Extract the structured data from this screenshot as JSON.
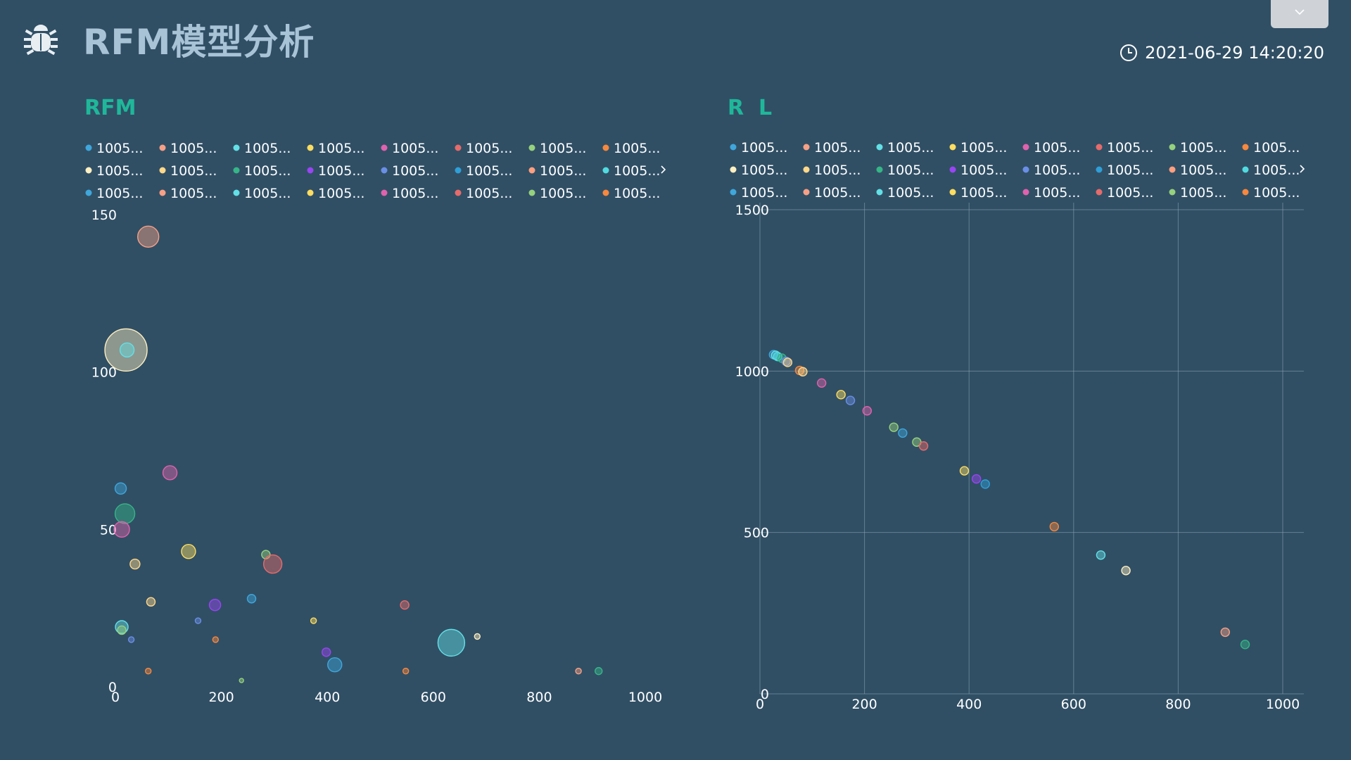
{
  "header": {
    "title": "RFM模型分析",
    "datetime": "2021-06-29 14:20:20",
    "logo_icon": "bug-icon",
    "clock_icon": "clock-icon",
    "dropdown_icon": "chevron-down-icon"
  },
  "colors": {
    "background": "#304f65",
    "panel_title": "#1fb79a",
    "header_title": "#a9c3d6",
    "palette": [
      "#3fa7dc",
      "#f7a086",
      "#63e0e6",
      "#fddd60",
      "#e062ae",
      "#e66b6b",
      "#96d17d",
      "#f7883e",
      "#fff0c2",
      "#ffd88a",
      "#36b587",
      "#9845f2",
      "#6b8fe6",
      "#2f9fd8",
      "#ff9f7f",
      "#51dbe0"
    ]
  },
  "legend_label": "1005...",
  "legend_more_icon": "chevron-right-icon",
  "chart_data": [
    {
      "type": "scatter",
      "title": "RFM",
      "xlim": [
        0,
        1000
      ],
      "ylim": [
        0,
        150
      ],
      "xticks": [
        "0",
        "200",
        "400",
        "600",
        "800",
        "1000"
      ],
      "yticks": [
        "0",
        "50",
        "100",
        "150"
      ],
      "grid": false,
      "legend_placement": "top",
      "legend_count": 24,
      "points": [
        {
          "x": 62,
          "y": 143,
          "size": 15,
          "c": 1
        },
        {
          "x": 20,
          "y": 107,
          "size": 30,
          "c": 8
        },
        {
          "x": 22,
          "y": 107,
          "size": 10,
          "c": 2
        },
        {
          "x": 103,
          "y": 68,
          "size": 10,
          "c": 4
        },
        {
          "x": 10,
          "y": 63,
          "size": 8,
          "c": 0
        },
        {
          "x": 18,
          "y": 55,
          "size": 14,
          "c": 10
        },
        {
          "x": 12,
          "y": 50,
          "size": 11,
          "c": 4
        },
        {
          "x": 138,
          "y": 43,
          "size": 10,
          "c": 3
        },
        {
          "x": 284,
          "y": 42,
          "size": 6,
          "c": 6
        },
        {
          "x": 297,
          "y": 39,
          "size": 13,
          "c": 5
        },
        {
          "x": 37,
          "y": 39,
          "size": 7,
          "c": 9
        },
        {
          "x": 67,
          "y": 27,
          "size": 6,
          "c": 9
        },
        {
          "x": 257,
          "y": 28,
          "size": 6,
          "c": 0
        },
        {
          "x": 188,
          "y": 26,
          "size": 8,
          "c": 11
        },
        {
          "x": 546,
          "y": 26,
          "size": 6,
          "c": 5
        },
        {
          "x": 156,
          "y": 21,
          "size": 4,
          "c": 12
        },
        {
          "x": 374,
          "y": 21,
          "size": 4,
          "c": 3
        },
        {
          "x": 12,
          "y": 19,
          "size": 9,
          "c": 2
        },
        {
          "x": 12,
          "y": 18,
          "size": 6,
          "c": 6
        },
        {
          "x": 634,
          "y": 14,
          "size": 19,
          "c": 2
        },
        {
          "x": 683,
          "y": 16,
          "size": 4,
          "c": 8
        },
        {
          "x": 30,
          "y": 15,
          "size": 4,
          "c": 12
        },
        {
          "x": 189,
          "y": 15,
          "size": 4,
          "c": 7
        },
        {
          "x": 398,
          "y": 11,
          "size": 6,
          "c": 11
        },
        {
          "x": 414,
          "y": 7,
          "size": 10,
          "c": 0
        },
        {
          "x": 62,
          "y": 5,
          "size": 4,
          "c": 7
        },
        {
          "x": 548,
          "y": 5,
          "size": 4,
          "c": 7
        },
        {
          "x": 874,
          "y": 5,
          "size": 4,
          "c": 1
        },
        {
          "x": 912,
          "y": 5,
          "size": 5,
          "c": 10
        },
        {
          "x": 238,
          "y": 2,
          "size": 3,
          "c": 6
        }
      ]
    },
    {
      "type": "scatter",
      "title": "R  L",
      "xlim": [
        0,
        1000
      ],
      "ylim": [
        0,
        1500
      ],
      "xticks": [
        "0",
        "200",
        "400",
        "600",
        "800",
        "1000"
      ],
      "yticks": [
        "0",
        "500",
        "1000",
        "1500"
      ],
      "grid": true,
      "legend_placement": "top",
      "legend_count": 24,
      "points": [
        {
          "x": 26,
          "y": 1051,
          "c": 0
        },
        {
          "x": 30,
          "y": 1049,
          "c": 2
        },
        {
          "x": 34,
          "y": 1045,
          "c": 15
        },
        {
          "x": 42,
          "y": 1040,
          "c": 10
        },
        {
          "x": 50,
          "y": 1030,
          "c": 12
        },
        {
          "x": 53,
          "y": 1027,
          "c": 9
        },
        {
          "x": 76,
          "y": 1002,
          "c": 7
        },
        {
          "x": 82,
          "y": 998,
          "c": 9
        },
        {
          "x": 118,
          "y": 963,
          "c": 4
        },
        {
          "x": 155,
          "y": 927,
          "c": 3
        },
        {
          "x": 173,
          "y": 909,
          "c": 12
        },
        {
          "x": 205,
          "y": 877,
          "c": 4
        },
        {
          "x": 256,
          "y": 826,
          "c": 6
        },
        {
          "x": 273,
          "y": 808,
          "c": 0
        },
        {
          "x": 300,
          "y": 780,
          "c": 6
        },
        {
          "x": 313,
          "y": 768,
          "c": 5
        },
        {
          "x": 391,
          "y": 691,
          "c": 3
        },
        {
          "x": 414,
          "y": 666,
          "c": 11
        },
        {
          "x": 431,
          "y": 650,
          "c": 13
        },
        {
          "x": 563,
          "y": 518,
          "c": 7
        },
        {
          "x": 652,
          "y": 430,
          "c": 2
        },
        {
          "x": 700,
          "y": 382,
          "c": 8
        },
        {
          "x": 890,
          "y": 191,
          "c": 1
        },
        {
          "x": 928,
          "y": 153,
          "c": 10
        }
      ]
    }
  ]
}
